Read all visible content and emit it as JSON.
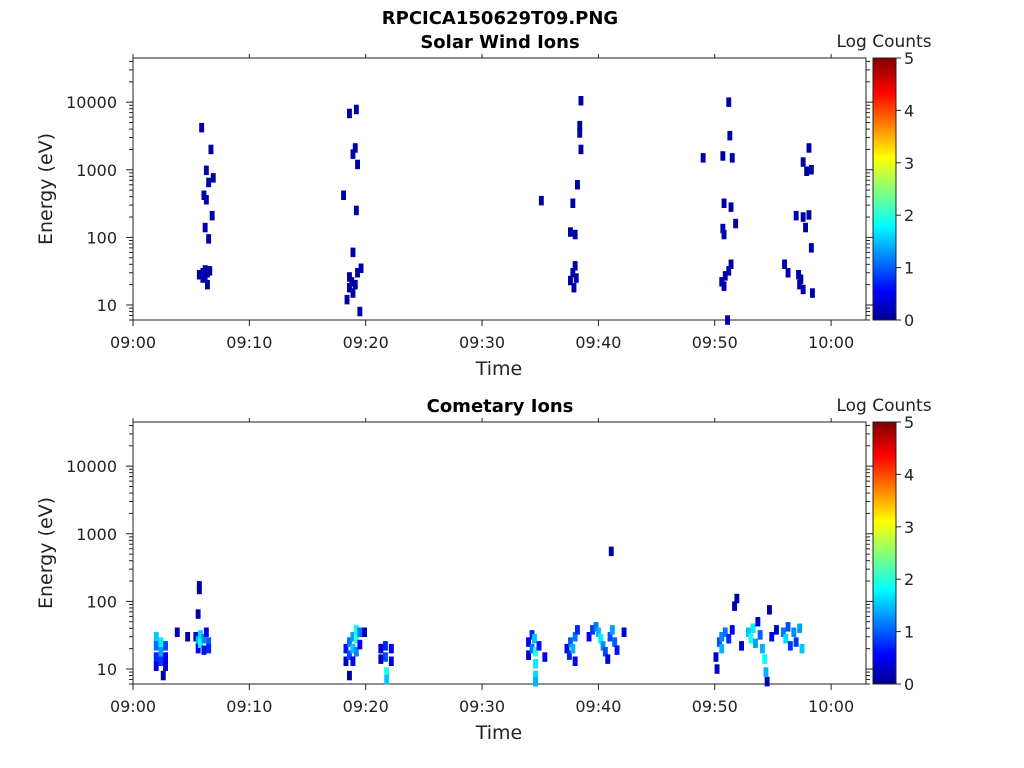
{
  "figure_title": "RPCICA150629T09.PNG",
  "chart_data": [
    {
      "type": "heatmap",
      "title": "Solar Wind Ions",
      "xlabel": "Time",
      "ylabel": "Energy (eV)",
      "x_ticks": [
        "09:00",
        "09:10",
        "09:20",
        "09:30",
        "09:40",
        "09:50",
        "10:00"
      ],
      "y_ticks": [
        "10",
        "100",
        "1000",
        "10000"
      ],
      "y_scale": "log",
      "ylim": [
        6,
        45000
      ],
      "xlim_minutes": [
        0,
        63
      ],
      "colorbar": {
        "label": "Log Counts",
        "range": [
          0,
          5
        ],
        "ticks": [
          "0",
          "1",
          "2",
          "3",
          "4",
          "5"
        ],
        "colormap": "jet"
      },
      "points": [
        {
          "t": 6.0,
          "e": 30,
          "v": 0.2
        },
        {
          "t": 6.0,
          "e": 25,
          "v": 0.2
        },
        {
          "t": 6.2,
          "e": 33,
          "v": 0.2
        },
        {
          "t": 6.2,
          "e": 27,
          "v": 0.2
        },
        {
          "t": 6.4,
          "e": 30,
          "v": 0.2
        },
        {
          "t": 6.4,
          "e": 20,
          "v": 0.2
        },
        {
          "t": 5.7,
          "e": 28,
          "v": 0.2
        },
        {
          "t": 6.6,
          "e": 32,
          "v": 0.2
        },
        {
          "t": 6.5,
          "e": 95,
          "v": 0.2
        },
        {
          "t": 6.2,
          "e": 140,
          "v": 0.2
        },
        {
          "t": 6.8,
          "e": 210,
          "v": 0.2
        },
        {
          "t": 6.1,
          "e": 420,
          "v": 0.2
        },
        {
          "t": 6.3,
          "e": 360,
          "v": 0.2
        },
        {
          "t": 6.5,
          "e": 650,
          "v": 0.2
        },
        {
          "t": 6.9,
          "e": 760,
          "v": 0.2
        },
        {
          "t": 6.3,
          "e": 980,
          "v": 0.2
        },
        {
          "t": 6.7,
          "e": 2000,
          "v": 0.2
        },
        {
          "t": 5.9,
          "e": 4200,
          "v": 0.2
        },
        {
          "t": 18.6,
          "e": 26,
          "v": 0.2
        },
        {
          "t": 18.8,
          "e": 22,
          "v": 0.2
        },
        {
          "t": 18.6,
          "e": 18,
          "v": 0.2
        },
        {
          "t": 18.9,
          "e": 15,
          "v": 0.2
        },
        {
          "t": 18.4,
          "e": 12,
          "v": 0.2
        },
        {
          "t": 19.3,
          "e": 30,
          "v": 0.2
        },
        {
          "t": 19.1,
          "e": 20,
          "v": 0.2
        },
        {
          "t": 19.5,
          "e": 8,
          "v": 0.2
        },
        {
          "t": 19.6,
          "e": 35,
          "v": 0.2
        },
        {
          "t": 18.9,
          "e": 60,
          "v": 0.2
        },
        {
          "t": 18.1,
          "e": 420,
          "v": 0.2
        },
        {
          "t": 19.2,
          "e": 250,
          "v": 0.2
        },
        {
          "t": 19.3,
          "e": 1200,
          "v": 0.2
        },
        {
          "t": 18.9,
          "e": 1700,
          "v": 0.2
        },
        {
          "t": 19.1,
          "e": 2100,
          "v": 0.2
        },
        {
          "t": 18.6,
          "e": 6800,
          "v": 0.2
        },
        {
          "t": 19.2,
          "e": 7800,
          "v": 0.2
        },
        {
          "t": 38.0,
          "e": 38,
          "v": 0.2
        },
        {
          "t": 37.8,
          "e": 30,
          "v": 0.2
        },
        {
          "t": 38.1,
          "e": 25,
          "v": 0.2
        },
        {
          "t": 37.6,
          "e": 23,
          "v": 0.2
        },
        {
          "t": 37.9,
          "e": 18,
          "v": 0.2
        },
        {
          "t": 35.1,
          "e": 350,
          "v": 0.2
        },
        {
          "t": 37.6,
          "e": 120,
          "v": 0.2
        },
        {
          "t": 38.0,
          "e": 110,
          "v": 0.2
        },
        {
          "t": 37.8,
          "e": 320,
          "v": 0.2
        },
        {
          "t": 38.2,
          "e": 600,
          "v": 0.2
        },
        {
          "t": 38.5,
          "e": 2000,
          "v": 0.2
        },
        {
          "t": 38.4,
          "e": 3500,
          "v": 0.2
        },
        {
          "t": 38.4,
          "e": 4500,
          "v": 0.2
        },
        {
          "t": 38.5,
          "e": 10500,
          "v": 0.2
        },
        {
          "t": 50.6,
          "e": 22,
          "v": 0.2
        },
        {
          "t": 50.9,
          "e": 27,
          "v": 0.2
        },
        {
          "t": 50.8,
          "e": 19,
          "v": 0.2
        },
        {
          "t": 51.2,
          "e": 32,
          "v": 0.2
        },
        {
          "t": 51.4,
          "e": 40,
          "v": 0.2
        },
        {
          "t": 51.1,
          "e": 6,
          "v": 0.2
        },
        {
          "t": 50.7,
          "e": 135,
          "v": 0.2
        },
        {
          "t": 50.8,
          "e": 110,
          "v": 0.2
        },
        {
          "t": 51.4,
          "e": 280,
          "v": 0.2
        },
        {
          "t": 50.8,
          "e": 320,
          "v": 0.2
        },
        {
          "t": 51.8,
          "e": 160,
          "v": 0.2
        },
        {
          "t": 49.0,
          "e": 1500,
          "v": 0.2
        },
        {
          "t": 50.7,
          "e": 1600,
          "v": 0.2
        },
        {
          "t": 51.5,
          "e": 1500,
          "v": 0.2
        },
        {
          "t": 51.3,
          "e": 3200,
          "v": 0.2
        },
        {
          "t": 51.2,
          "e": 10000,
          "v": 0.2
        },
        {
          "t": 56.0,
          "e": 40,
          "v": 0.2
        },
        {
          "t": 56.3,
          "e": 30,
          "v": 0.2
        },
        {
          "t": 57.2,
          "e": 28,
          "v": 0.2
        },
        {
          "t": 57.4,
          "e": 24,
          "v": 0.2
        },
        {
          "t": 57.3,
          "e": 20,
          "v": 0.2
        },
        {
          "t": 57.6,
          "e": 17,
          "v": 0.2
        },
        {
          "t": 58.4,
          "e": 15,
          "v": 0.2
        },
        {
          "t": 58.3,
          "e": 70,
          "v": 0.2
        },
        {
          "t": 57.8,
          "e": 140,
          "v": 0.2
        },
        {
          "t": 57.0,
          "e": 210,
          "v": 0.2
        },
        {
          "t": 57.6,
          "e": 200,
          "v": 0.2
        },
        {
          "t": 58.1,
          "e": 215,
          "v": 0.2
        },
        {
          "t": 57.9,
          "e": 950,
          "v": 0.2
        },
        {
          "t": 58.3,
          "e": 1000,
          "v": 0.2
        },
        {
          "t": 57.6,
          "e": 1300,
          "v": 0.2
        },
        {
          "t": 58.1,
          "e": 2100,
          "v": 0.2
        }
      ]
    },
    {
      "type": "heatmap",
      "title": "Cometary Ions",
      "xlabel": "Time",
      "ylabel": "Energy (eV)",
      "x_ticks": [
        "09:00",
        "09:10",
        "09:20",
        "09:30",
        "09:40",
        "09:50",
        "10:00"
      ],
      "y_ticks": [
        "10",
        "100",
        "1000",
        "10000"
      ],
      "y_scale": "log",
      "ylim": [
        6,
        45000
      ],
      "xlim_minutes": [
        0,
        63
      ],
      "colorbar": {
        "label": "Log Counts",
        "range": [
          0,
          5
        ],
        "ticks": [
          "0",
          "1",
          "2",
          "3",
          "4",
          "5"
        ],
        "colormap": "jet"
      },
      "points": [
        {
          "t": 2.0,
          "e": 30,
          "v": 1.6
        },
        {
          "t": 2.0,
          "e": 22,
          "v": 1.2
        },
        {
          "t": 2.0,
          "e": 15,
          "v": 0.8
        },
        {
          "t": 2.0,
          "e": 11,
          "v": 0.5
        },
        {
          "t": 2.4,
          "e": 25,
          "v": 1.8
        },
        {
          "t": 2.4,
          "e": 18,
          "v": 1.4
        },
        {
          "t": 2.4,
          "e": 13,
          "v": 0.9
        },
        {
          "t": 2.6,
          "e": 8,
          "v": 0.2
        },
        {
          "t": 2.8,
          "e": 22,
          "v": 1.0
        },
        {
          "t": 2.8,
          "e": 15,
          "v": 0.6
        },
        {
          "t": 2.8,
          "e": 11,
          "v": 0.4
        },
        {
          "t": 3.8,
          "e": 35,
          "v": 0.3
        },
        {
          "t": 5.4,
          "e": 30,
          "v": 0.4
        },
        {
          "t": 5.6,
          "e": 26,
          "v": 1.5
        },
        {
          "t": 5.6,
          "e": 20,
          "v": 0.6
        },
        {
          "t": 5.8,
          "e": 32,
          "v": 1.7
        },
        {
          "t": 5.8,
          "e": 24,
          "v": 1.9
        },
        {
          "t": 6.1,
          "e": 28,
          "v": 1.3
        },
        {
          "t": 6.1,
          "e": 19,
          "v": 0.7
        },
        {
          "t": 6.3,
          "e": 35,
          "v": 0.5
        },
        {
          "t": 6.5,
          "e": 25,
          "v": 1.1
        },
        {
          "t": 6.5,
          "e": 20,
          "v": 0.8
        },
        {
          "t": 4.7,
          "e": 30,
          "v": 0.2
        },
        {
          "t": 5.6,
          "e": 65,
          "v": 0.2
        },
        {
          "t": 5.7,
          "e": 150,
          "v": 0.2
        },
        {
          "t": 5.7,
          "e": 170,
          "v": 0.2
        },
        {
          "t": 18.3,
          "e": 20,
          "v": 0.7
        },
        {
          "t": 18.3,
          "e": 13,
          "v": 0.4
        },
        {
          "t": 18.6,
          "e": 25,
          "v": 1.2
        },
        {
          "t": 18.6,
          "e": 16,
          "v": 1.0
        },
        {
          "t": 18.6,
          "e": 8,
          "v": 0.2
        },
        {
          "t": 18.9,
          "e": 30,
          "v": 1.4
        },
        {
          "t": 18.9,
          "e": 20,
          "v": 1.6
        },
        {
          "t": 18.9,
          "e": 13,
          "v": 0.6
        },
        {
          "t": 19.2,
          "e": 38,
          "v": 1.9
        },
        {
          "t": 19.2,
          "e": 28,
          "v": 2.1
        },
        {
          "t": 19.2,
          "e": 18,
          "v": 1.3
        },
        {
          "t": 19.5,
          "e": 35,
          "v": 1.2
        },
        {
          "t": 19.5,
          "e": 23,
          "v": 0.6
        },
        {
          "t": 19.9,
          "e": 35,
          "v": 0.3
        },
        {
          "t": 21.3,
          "e": 20,
          "v": 0.4
        },
        {
          "t": 21.3,
          "e": 14,
          "v": 0.3
        },
        {
          "t": 21.7,
          "e": 22,
          "v": 0.8
        },
        {
          "t": 21.7,
          "e": 15,
          "v": 1.0
        },
        {
          "t": 21.8,
          "e": 9,
          "v": 2.0
        },
        {
          "t": 21.8,
          "e": 7,
          "v": 1.6
        },
        {
          "t": 22.2,
          "e": 20,
          "v": 0.6
        },
        {
          "t": 22.2,
          "e": 13,
          "v": 0.4
        },
        {
          "t": 34.0,
          "e": 25,
          "v": 0.6
        },
        {
          "t": 34.0,
          "e": 16,
          "v": 0.4
        },
        {
          "t": 34.3,
          "e": 32,
          "v": 0.8
        },
        {
          "t": 34.3,
          "e": 20,
          "v": 1.2
        },
        {
          "t": 34.5,
          "e": 28,
          "v": 1.6
        },
        {
          "t": 34.6,
          "e": 18,
          "v": 2.0
        },
        {
          "t": 34.6,
          "e": 12,
          "v": 1.8
        },
        {
          "t": 34.6,
          "e": 8,
          "v": 1.7
        },
        {
          "t": 34.6,
          "e": 6.5,
          "v": 1.5
        },
        {
          "t": 34.9,
          "e": 22,
          "v": 0.7
        },
        {
          "t": 35.4,
          "e": 15,
          "v": 0.5
        },
        {
          "t": 37.3,
          "e": 20,
          "v": 0.4
        },
        {
          "t": 37.5,
          "e": 16,
          "v": 0.8
        },
        {
          "t": 37.6,
          "e": 25,
          "v": 1.1
        },
        {
          "t": 37.8,
          "e": 20,
          "v": 1.5
        },
        {
          "t": 38.0,
          "e": 30,
          "v": 1.2
        },
        {
          "t": 38.2,
          "e": 38,
          "v": 0.8
        },
        {
          "t": 38.0,
          "e": 13,
          "v": 0.6
        },
        {
          "t": 39.2,
          "e": 30,
          "v": 0.6
        },
        {
          "t": 39.5,
          "e": 38,
          "v": 0.9
        },
        {
          "t": 39.8,
          "e": 42,
          "v": 1.2
        },
        {
          "t": 40.0,
          "e": 35,
          "v": 1.5
        },
        {
          "t": 40.2,
          "e": 28,
          "v": 1.8
        },
        {
          "t": 40.4,
          "e": 22,
          "v": 1.3
        },
        {
          "t": 40.6,
          "e": 18,
          "v": 1.0
        },
        {
          "t": 40.8,
          "e": 14,
          "v": 0.6
        },
        {
          "t": 41.0,
          "e": 30,
          "v": 1.0
        },
        {
          "t": 41.2,
          "e": 38,
          "v": 1.4
        },
        {
          "t": 41.4,
          "e": 25,
          "v": 1.1
        },
        {
          "t": 41.6,
          "e": 19,
          "v": 0.7
        },
        {
          "t": 42.2,
          "e": 35,
          "v": 0.4
        },
        {
          "t": 41.1,
          "e": 550,
          "v": 0.2
        },
        {
          "t": 50.1,
          "e": 15,
          "v": 0.4
        },
        {
          "t": 50.2,
          "e": 10,
          "v": 0.3
        },
        {
          "t": 50.4,
          "e": 25,
          "v": 1.0
        },
        {
          "t": 50.6,
          "e": 30,
          "v": 1.3
        },
        {
          "t": 50.6,
          "e": 20,
          "v": 1.5
        },
        {
          "t": 50.9,
          "e": 35,
          "v": 1.2
        },
        {
          "t": 51.2,
          "e": 28,
          "v": 0.8
        },
        {
          "t": 51.5,
          "e": 38,
          "v": 0.6
        },
        {
          "t": 51.7,
          "e": 85,
          "v": 0.2
        },
        {
          "t": 51.9,
          "e": 110,
          "v": 0.2
        },
        {
          "t": 52.3,
          "e": 22,
          "v": 0.4
        },
        {
          "t": 52.9,
          "e": 35,
          "v": 1.6
        },
        {
          "t": 53.1,
          "e": 28,
          "v": 2.0
        },
        {
          "t": 53.3,
          "e": 40,
          "v": 1.8
        },
        {
          "t": 53.5,
          "e": 24,
          "v": 1.4
        },
        {
          "t": 53.7,
          "e": 50,
          "v": 0.4
        },
        {
          "t": 53.9,
          "e": 32,
          "v": 1.1
        },
        {
          "t": 54.1,
          "e": 20,
          "v": 1.5
        },
        {
          "t": 54.3,
          "e": 14,
          "v": 1.9
        },
        {
          "t": 54.4,
          "e": 9,
          "v": 1.5
        },
        {
          "t": 54.5,
          "e": 6.5,
          "v": 0.3
        },
        {
          "t": 54.7,
          "e": 75,
          "v": 0.2
        },
        {
          "t": 54.9,
          "e": 30,
          "v": 0.6
        },
        {
          "t": 55.3,
          "e": 38,
          "v": 0.3
        },
        {
          "t": 55.9,
          "e": 35,
          "v": 1.2
        },
        {
          "t": 56.1,
          "e": 28,
          "v": 1.7
        },
        {
          "t": 56.3,
          "e": 42,
          "v": 1.0
        },
        {
          "t": 56.5,
          "e": 22,
          "v": 0.9
        },
        {
          "t": 56.8,
          "e": 35,
          "v": 1.3
        },
        {
          "t": 57.0,
          "e": 25,
          "v": 0.9
        },
        {
          "t": 57.3,
          "e": 40,
          "v": 1.4
        },
        {
          "t": 57.5,
          "e": 20,
          "v": 1.6
        }
      ]
    }
  ]
}
